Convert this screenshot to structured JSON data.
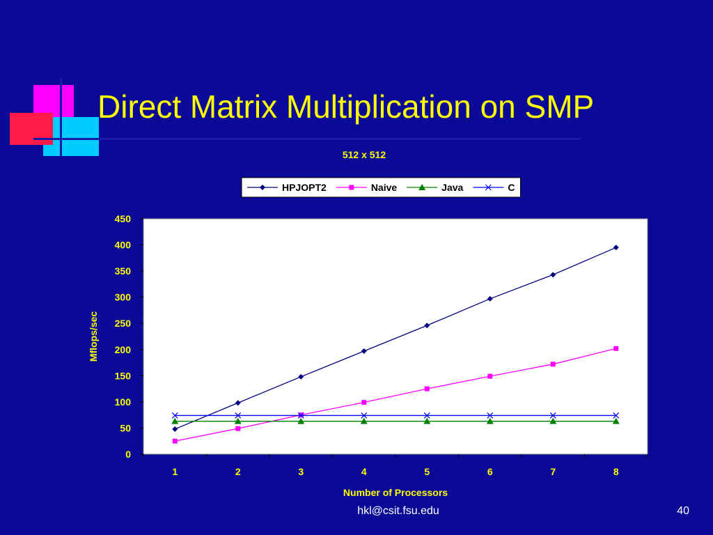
{
  "slide": {
    "title": "Direct Matrix Multiplication on SMP",
    "footer_email": "hkl@csit.fsu.edu",
    "page_number": "40"
  },
  "colors": {
    "background": "#0a0a96",
    "title": "#ffff00",
    "axis_text": "#ffff00",
    "plot_area": "#ffffff"
  },
  "chart_data": {
    "type": "line",
    "title": "512 x 512",
    "xlabel": "Number of Processors",
    "ylabel": "Mflops/sec",
    "x": [
      1,
      2,
      3,
      4,
      5,
      6,
      7,
      8
    ],
    "ylim": [
      0,
      450
    ],
    "yticks": [
      0,
      50,
      100,
      150,
      200,
      250,
      300,
      350,
      400,
      450
    ],
    "legend_position": "top",
    "series": [
      {
        "name": "HPJOPT2",
        "color": "#000080",
        "marker": "diamond",
        "values": [
          48,
          98,
          148,
          197,
          246,
          297,
          343,
          395
        ]
      },
      {
        "name": "Naive",
        "color": "#ff00ff",
        "marker": "square",
        "values": [
          25,
          49,
          75,
          99,
          125,
          149,
          172,
          202
        ]
      },
      {
        "name": "Java",
        "color": "#008000",
        "marker": "triangle",
        "values": [
          63,
          63,
          63,
          63,
          63,
          63,
          63,
          63
        ]
      },
      {
        "name": "C",
        "color": "#0000ff",
        "marker": "x",
        "values": [
          74,
          74,
          74,
          74,
          74,
          74,
          74,
          74
        ]
      }
    ]
  }
}
